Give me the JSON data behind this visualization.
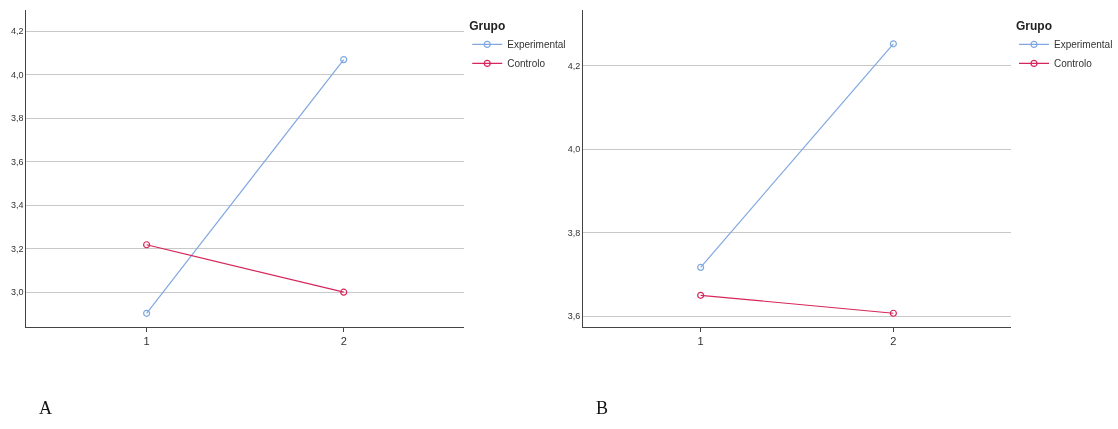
{
  "chart_data": [
    {
      "type": "line",
      "categories": [
        "1",
        "2"
      ],
      "legend_title": "Grupo",
      "legend": "top right",
      "marker": "circle",
      "line_style": "solid",
      "grid": "y",
      "ylim": [
        2.84,
        4.297
      ],
      "yticks": [
        {
          "value": 3.0,
          "label": "3,0"
        },
        {
          "value": 3.2,
          "label": "3,2"
        },
        {
          "value": 3.4,
          "label": "3,4"
        },
        {
          "value": 3.6,
          "label": "3,6"
        },
        {
          "value": 3.8,
          "label": "3,8"
        },
        {
          "value": 4.0,
          "label": "4,0"
        },
        {
          "value": 4.2,
          "label": "4,2"
        }
      ],
      "series": [
        {
          "name": "Experimental",
          "color": "#7fa8e0",
          "values": [
            2.903,
            4.069
          ]
        },
        {
          "name": "Controlo",
          "color": "#d6265a",
          "values": [
            3.218,
            3.0
          ]
        }
      ],
      "annotations": [
        "A"
      ]
    },
    {
      "type": "line",
      "categories": [
        "1",
        "2"
      ],
      "legend_title": "Grupo",
      "legend": "top right",
      "marker": "circle",
      "line_style": "solid",
      "grid": "y",
      "ylim": [
        3.574,
        4.334
      ],
      "yticks": [
        {
          "value": 3.6,
          "label": "3,6"
        },
        {
          "value": 3.8,
          "label": "3,8"
        },
        {
          "value": 4.0,
          "label": "4,0"
        },
        {
          "value": 4.2,
          "label": "4,2"
        }
      ],
      "series": [
        {
          "name": "Experimental",
          "color": "#7fa8e0",
          "values": [
            3.717,
            4.253
          ]
        },
        {
          "name": "Controlo",
          "color": "#d6265a",
          "values": [
            3.65,
            3.607
          ]
        }
      ],
      "annotations": [
        "B"
      ]
    }
  ]
}
